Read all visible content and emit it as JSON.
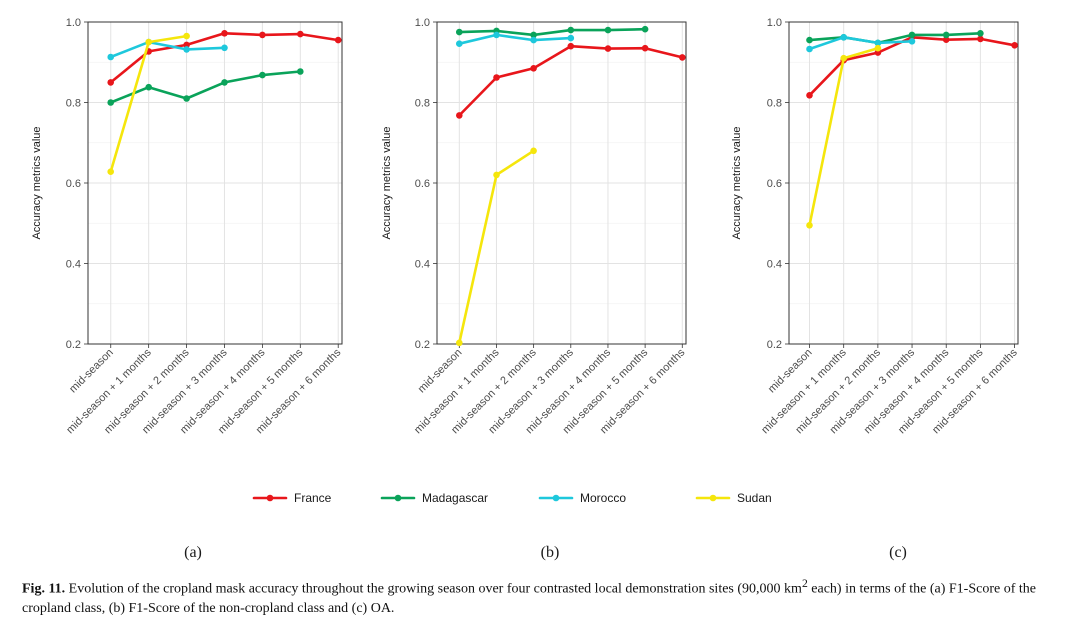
{
  "figure": {
    "legend": [
      {
        "name": "France",
        "color": "#e8161b"
      },
      {
        "name": "Madagascar",
        "color": "#0aa35a"
      },
      {
        "name": "Morocco",
        "color": "#1ec8dc"
      },
      {
        "name": "Sudan",
        "color": "#f5e60c"
      }
    ],
    "caption": {
      "label": "Fig. 11.",
      "text_before_sup": " Evolution of the cropland mask accuracy throughout the growing season over four contrasted local demonstration sites (90,000 km",
      "sup": "2",
      "text_after_sup": " each) in terms of the (a) F1-Score of the cropland class, (b) F1-Score of the non-cropland class and (c) OA."
    }
  },
  "chart_data": [
    {
      "type": "line",
      "panel_label": "(a)",
      "ylabel": "Accuracy metrics value",
      "xlabel": "",
      "ylim": [
        0.2,
        1.0
      ],
      "yticks": [
        0.2,
        0.4,
        0.6,
        0.8,
        1.0
      ],
      "ytick_labels": [
        "0.2",
        "0.4",
        "0.6",
        "0.8",
        "1.0"
      ],
      "grid": true,
      "categories": [
        "mid-season",
        "mid-season + 1 months",
        "mid-season + 2 months",
        "mid-season + 3 months",
        "mid-season + 4 months",
        "mid-season + 5 months",
        "mid-season + 6 months"
      ],
      "series": [
        {
          "name": "France",
          "values": [
            0.85,
            0.927,
            0.943,
            0.972,
            0.968,
            0.97,
            0.955
          ]
        },
        {
          "name": "Madagascar",
          "values": [
            0.8,
            0.838,
            0.81,
            0.85,
            0.868,
            0.877,
            null
          ]
        },
        {
          "name": "Morocco",
          "values": [
            0.913,
            0.95,
            0.932,
            0.936,
            null,
            null,
            null
          ]
        },
        {
          "name": "Sudan",
          "values": [
            0.628,
            0.95,
            0.965,
            null,
            null,
            null,
            null
          ]
        }
      ]
    },
    {
      "type": "line",
      "panel_label": "(b)",
      "ylabel": "Accuracy metrics value",
      "xlabel": "",
      "ylim": [
        0.2,
        1.0
      ],
      "yticks": [
        0.2,
        0.4,
        0.6,
        0.8,
        1.0
      ],
      "ytick_labels": [
        "0.2",
        "0.4",
        "0.6",
        "0.8",
        "1.0"
      ],
      "grid": true,
      "categories": [
        "mid-season",
        "mid-season + 1 months",
        "mid-season + 2 months",
        "mid-season + 3 months",
        "mid-season + 4 months",
        "mid-season + 5 months",
        "mid-season + 6 months"
      ],
      "series": [
        {
          "name": "France",
          "values": [
            0.768,
            0.862,
            0.885,
            0.94,
            0.934,
            0.935,
            0.912
          ]
        },
        {
          "name": "Madagascar",
          "values": [
            0.975,
            0.978,
            0.968,
            0.98,
            0.98,
            0.982,
            null
          ]
        },
        {
          "name": "Morocco",
          "values": [
            0.946,
            0.968,
            0.955,
            0.96,
            null,
            null,
            null
          ]
        },
        {
          "name": "Sudan",
          "values": [
            0.203,
            0.62,
            0.68,
            null,
            null,
            null,
            null
          ]
        }
      ]
    },
    {
      "type": "line",
      "panel_label": "(c)",
      "ylabel": "Accuracy metrics value",
      "xlabel": "",
      "ylim": [
        0.2,
        1.0
      ],
      "yticks": [
        0.2,
        0.4,
        0.6,
        0.8,
        1.0
      ],
      "ytick_labels": [
        "0.2",
        "0.4",
        "0.6",
        "0.8",
        "1.0"
      ],
      "grid": true,
      "categories": [
        "mid-season",
        "mid-season + 1 months",
        "mid-season + 2 months",
        "mid-season + 3 months",
        "mid-season + 4 months",
        "mid-season + 5 months",
        "mid-season + 6 months"
      ],
      "series": [
        {
          "name": "France",
          "values": [
            0.818,
            0.905,
            0.924,
            0.962,
            0.956,
            0.958,
            0.942
          ]
        },
        {
          "name": "Madagascar",
          "values": [
            0.955,
            0.962,
            0.948,
            0.968,
            0.968,
            0.972,
            null
          ]
        },
        {
          "name": "Morocco",
          "values": [
            0.933,
            0.962,
            0.948,
            0.952,
            null,
            null,
            null
          ]
        },
        {
          "name": "Sudan",
          "values": [
            0.495,
            0.91,
            0.935,
            null,
            null,
            null,
            null
          ]
        }
      ]
    }
  ]
}
